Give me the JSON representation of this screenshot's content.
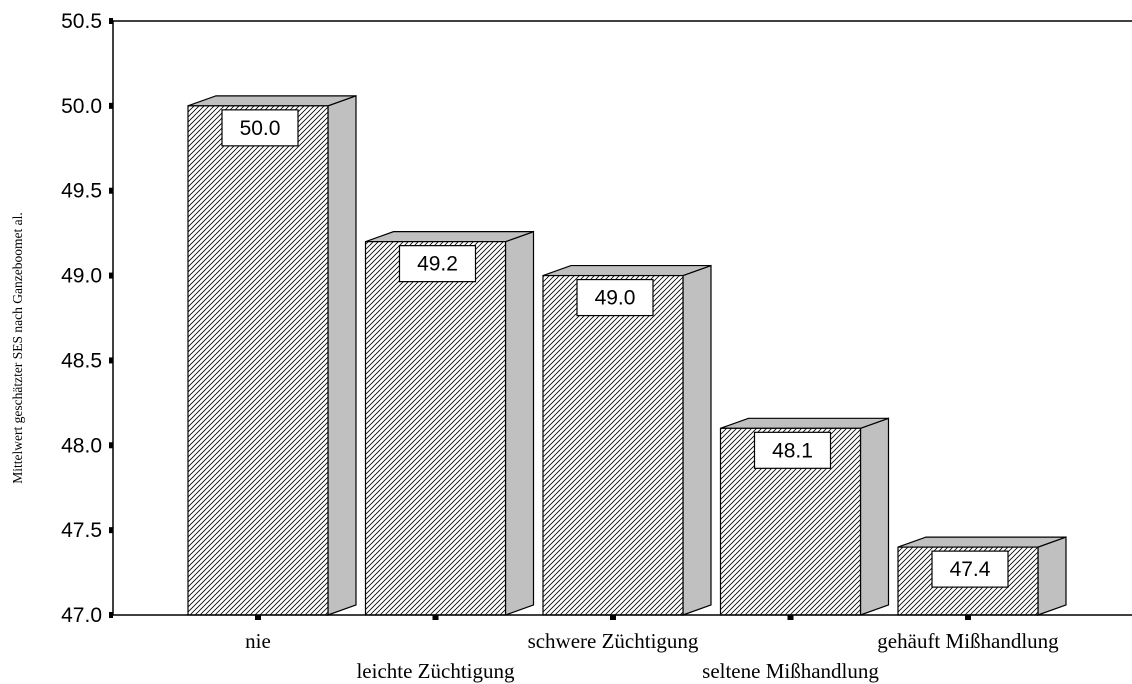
{
  "chart_data": {
    "type": "bar",
    "ylabel": "Mittelwert geschätzter SES nach Ganzeboomet al.",
    "xlabel": "",
    "ylim": [
      47.0,
      50.5
    ],
    "yticks": [
      "50.5",
      "50.0",
      "49.5",
      "49.0",
      "48.5",
      "48.0",
      "47.5",
      "47.0"
    ],
    "categories": [
      "nie",
      "leichte Züchtigung",
      "schwere Züchtigung",
      "seltene Mißhandlung",
      "gehäuft Mißhandlung"
    ],
    "values": [
      50.0,
      49.2,
      49.0,
      48.1,
      47.4
    ],
    "data_labels": [
      "50.0",
      "49.2",
      "49.0",
      "48.1",
      "47.4"
    ],
    "category_label_rows": [
      0,
      1,
      0,
      1,
      0
    ],
    "style": "3d-hatched",
    "grid": false,
    "legend": "none",
    "colors": {
      "bar_front_hatch": "#000000",
      "bar_front_bg": "#ffffff",
      "bar_side": "#c0c0c0",
      "bar_top": "#c0c0c0",
      "axis": "#000000"
    }
  }
}
